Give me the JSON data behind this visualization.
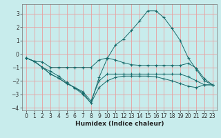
{
  "xlabel": "Humidex (Indice chaleur)",
  "bg_color": "#c8ecec",
  "grid_color": "#e8a0a0",
  "line_color": "#1a6b6b",
  "xlim": [
    -0.5,
    23.5
  ],
  "ylim": [
    -4.2,
    3.7
  ],
  "x_ticks": [
    0,
    1,
    2,
    3,
    4,
    5,
    6,
    7,
    8,
    9,
    10,
    11,
    12,
    13,
    14,
    15,
    16,
    17,
    18,
    19,
    20,
    21,
    22,
    23
  ],
  "y_ticks": [
    -4,
    -3,
    -2,
    -1,
    0,
    1,
    2,
    3
  ],
  "line1_x": [
    0,
    1,
    2,
    3,
    4,
    5,
    6,
    7,
    8,
    9,
    10,
    11,
    12,
    13,
    14,
    15,
    16,
    17,
    18,
    19,
    20,
    21,
    22,
    23
  ],
  "line1_y": [
    -0.3,
    -0.55,
    -0.6,
    -1.0,
    -1.0,
    -1.0,
    -1.0,
    -1.0,
    -1.0,
    -0.45,
    -0.3,
    -0.45,
    -0.65,
    -0.8,
    -0.85,
    -0.85,
    -0.85,
    -0.85,
    -0.85,
    -0.85,
    -0.7,
    -1.05,
    -1.85,
    -2.3
  ],
  "line2_x": [
    0,
    1,
    2,
    3,
    4,
    5,
    6,
    7,
    8,
    9,
    10,
    11,
    12,
    13,
    14,
    15,
    16,
    17,
    18,
    19,
    20,
    21,
    22,
    23
  ],
  "line2_y": [
    -0.3,
    -0.55,
    -1.0,
    -1.3,
    -1.65,
    -2.1,
    -2.55,
    -3.0,
    -3.65,
    -1.75,
    -0.35,
    0.65,
    1.1,
    1.75,
    2.45,
    3.2,
    3.2,
    2.7,
    1.9,
    1.0,
    -0.3,
    -1.15,
    -2.0,
    -2.3
  ],
  "line3_x": [
    0,
    1,
    2,
    3,
    4,
    5,
    6,
    7,
    8,
    9,
    10,
    11,
    12,
    13,
    14,
    15,
    16,
    17,
    18,
    19,
    20,
    21,
    22,
    23
  ],
  "line3_y": [
    -0.3,
    -0.55,
    -1.0,
    -1.5,
    -1.8,
    -2.2,
    -2.5,
    -2.8,
    -3.5,
    -2.0,
    -1.5,
    -1.5,
    -1.5,
    -1.5,
    -1.5,
    -1.5,
    -1.5,
    -1.5,
    -1.5,
    -1.5,
    -1.7,
    -2.0,
    -2.3,
    -2.3
  ],
  "line4_x": [
    0,
    1,
    2,
    3,
    4,
    5,
    6,
    7,
    8,
    9,
    10,
    11,
    12,
    13,
    14,
    15,
    16,
    17,
    18,
    19,
    20,
    21,
    22,
    23
  ],
  "line4_y": [
    -0.3,
    -0.55,
    -1.0,
    -1.5,
    -1.8,
    -2.2,
    -2.5,
    -2.9,
    -3.65,
    -2.5,
    -2.0,
    -1.75,
    -1.65,
    -1.65,
    -1.65,
    -1.65,
    -1.7,
    -1.85,
    -2.0,
    -2.2,
    -2.4,
    -2.5,
    -2.3,
    -2.3
  ],
  "tick_fontsize": 5.5,
  "xlabel_fontsize": 6.5
}
